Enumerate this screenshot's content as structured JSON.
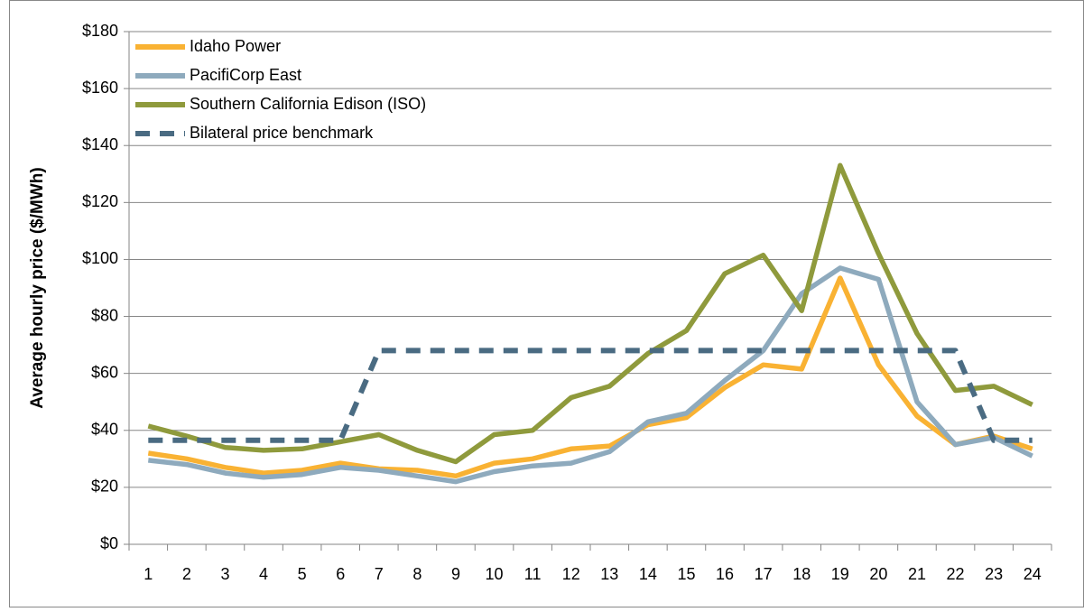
{
  "chart_data": {
    "type": "line",
    "y_label": "Average hourly price ($/MWh)",
    "categories": [
      "1",
      "2",
      "3",
      "4",
      "5",
      "6",
      "7",
      "8",
      "9",
      "10",
      "11",
      "12",
      "13",
      "14",
      "15",
      "16",
      "17",
      "18",
      "19",
      "20",
      "21",
      "22",
      "23",
      "24"
    ],
    "series": [
      {
        "name": "Idaho Power",
        "color": "#f9b233",
        "values": [
          32,
          30,
          27,
          25,
          26,
          28.5,
          26.5,
          26,
          24,
          28.5,
          30,
          33.5,
          34.5,
          42,
          44.5,
          55,
          63,
          61.5,
          93.5,
          63,
          45,
          35,
          38,
          33.5
        ]
      },
      {
        "name": "PacifiCorp East",
        "color": "#8eaabd",
        "values": [
          29.5,
          28,
          25,
          23.5,
          24.5,
          27,
          26,
          24,
          22,
          25.5,
          27.5,
          28.5,
          32.5,
          43,
          46,
          57.5,
          68,
          88,
          97,
          93,
          50,
          35,
          37.5,
          31
        ]
      },
      {
        "name": "Southern California Edison (ISO)",
        "color": "#8f9a3c",
        "values": [
          41.5,
          38,
          34,
          33,
          33.5,
          36,
          38.5,
          33,
          29,
          38.5,
          40,
          51.5,
          55.5,
          67,
          75,
          95,
          101.5,
          82,
          133,
          102,
          74,
          54,
          55.5,
          49
        ]
      },
      {
        "name": "Bilateral price benchmark",
        "color": "#4a6b82",
        "dashed": true,
        "values": [
          36.5,
          36.5,
          36.5,
          36.5,
          36.5,
          36.5,
          68,
          68,
          68,
          68,
          68,
          68,
          68,
          68,
          68,
          68,
          68,
          68,
          68,
          68,
          68,
          68,
          36.5,
          36.5
        ]
      }
    ],
    "ylim": [
      0,
      180
    ],
    "yticks": [
      {
        "value": 0,
        "label": "$0"
      },
      {
        "value": 20,
        "label": "$20"
      },
      {
        "value": 40,
        "label": "$40"
      },
      {
        "value": 60,
        "label": "$60"
      },
      {
        "value": 80,
        "label": "$80"
      },
      {
        "value": 100,
        "label": "$100"
      },
      {
        "value": 120,
        "label": "$120"
      },
      {
        "value": 140,
        "label": "$140"
      },
      {
        "value": 160,
        "label": "$160"
      },
      {
        "value": 180,
        "label": "$180"
      }
    ],
    "grid": true,
    "legend": "top-left"
  }
}
